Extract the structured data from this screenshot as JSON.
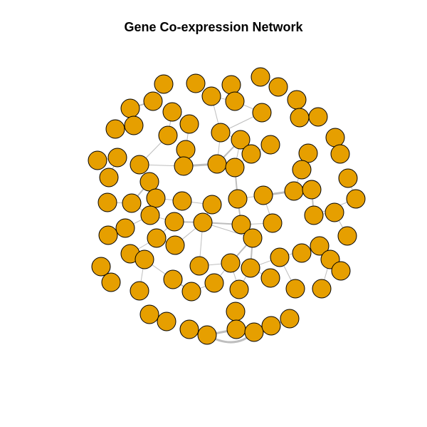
{
  "title": "Gene Co-expression Network",
  "colors": {
    "node_fill": "#E69F00",
    "node_stroke": "#000000",
    "edge": "#BEBEBE",
    "background": "#FFFFFF"
  },
  "chart_data": {
    "type": "network",
    "title": "Gene Co-expression Network",
    "node_count": 100,
    "edges_weighted": true
  }
}
